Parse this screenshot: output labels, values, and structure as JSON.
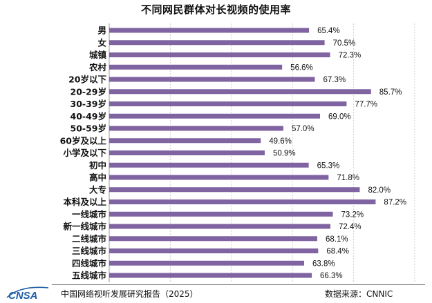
{
  "chart_data": {
    "type": "bar",
    "orientation": "horizontal",
    "title": "不同网民群体对长视频的使用率",
    "categories": [
      "男",
      "女",
      "城镇",
      "农村",
      "20岁以下",
      "20-29岁",
      "30-39岁",
      "40-49岁",
      "50-59岁",
      "60岁及以上",
      "小学及以下",
      "初中",
      "高中",
      "大专",
      "本科及以上",
      "一线城市",
      "新一线城市",
      "二线城市",
      "三线城市",
      "四线城市",
      "五线城市"
    ],
    "values": [
      65.4,
      70.5,
      72.3,
      56.6,
      67.3,
      85.7,
      77.7,
      69.0,
      57.0,
      49.6,
      50.9,
      65.3,
      71.8,
      82.0,
      87.2,
      73.2,
      72.4,
      68.1,
      68.4,
      63.8,
      66.3
    ],
    "value_labels": [
      "65.4%",
      "70.5%",
      "72.3%",
      "56.6%",
      "67.3%",
      "85.7%",
      "77.7%",
      "69.0%",
      "57.0%",
      "49.6%",
      "50.9%",
      "65.3%",
      "71.8%",
      "82.0%",
      "87.2%",
      "73.2%",
      "72.4%",
      "68.1%",
      "68.4%",
      "63.8%",
      "66.3%"
    ],
    "xlim": [
      0,
      100
    ],
    "grid": true,
    "bar_color": "#8064A2",
    "grid_color": "#d0d0d0"
  },
  "footer": {
    "logo_text": "CNSA",
    "report": "中国网络视听发展研究报告（2025）",
    "source": "数据来源：CNNIC"
  },
  "colors": {
    "logo_blue": "#1f5fa8"
  }
}
